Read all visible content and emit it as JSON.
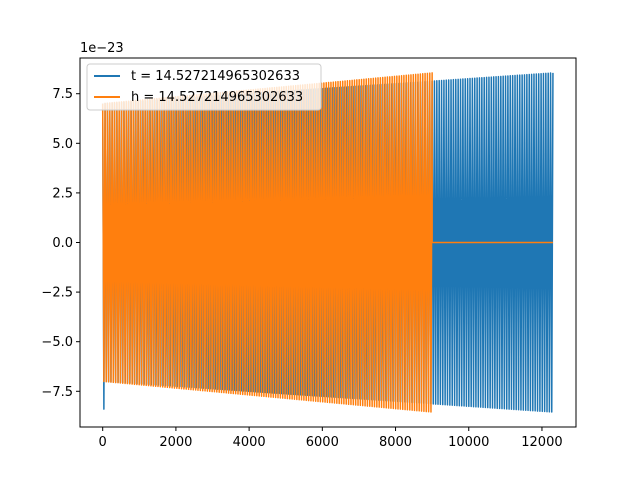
{
  "chart_data": {
    "type": "line",
    "title": "",
    "xlabel": "",
    "ylabel": "",
    "y_offset_text": "1e−23",
    "xlim": [
      -620,
      12930
    ],
    "ylim": [
      -9.3,
      9.3
    ],
    "x_ticks": [
      0,
      2000,
      4000,
      6000,
      8000,
      10000,
      12000
    ],
    "x_tick_labels": [
      "0",
      "2000",
      "4000",
      "6000",
      "8000",
      "10000",
      "12000"
    ],
    "y_ticks": [
      -7.5,
      -5.0,
      -2.5,
      0.0,
      2.5,
      5.0,
      7.5
    ],
    "y_tick_labels": [
      "−7.5",
      "−5.0",
      "−2.5",
      "0.0",
      "2.5",
      "5.0",
      "7.5"
    ],
    "grid": false,
    "legend_position": "upper-left",
    "series": [
      {
        "name": "t = 14.527214965302633",
        "color": "#1f77b4",
        "x_start": 0,
        "x_end": 12300,
        "cycles": 190,
        "amplitude_start": 7.0,
        "amplitude_end": 8.55,
        "initial_min": -8.4
      },
      {
        "name": "h = 14.527214965302633",
        "color": "#ff7f0e",
        "x_start": 0,
        "x_end": 9000,
        "cycles": 140,
        "amplitude_start": 7.0,
        "amplitude_end": 8.55,
        "flat_after": 9000,
        "flat_until": 12300,
        "flat_value": 0.0
      }
    ]
  }
}
